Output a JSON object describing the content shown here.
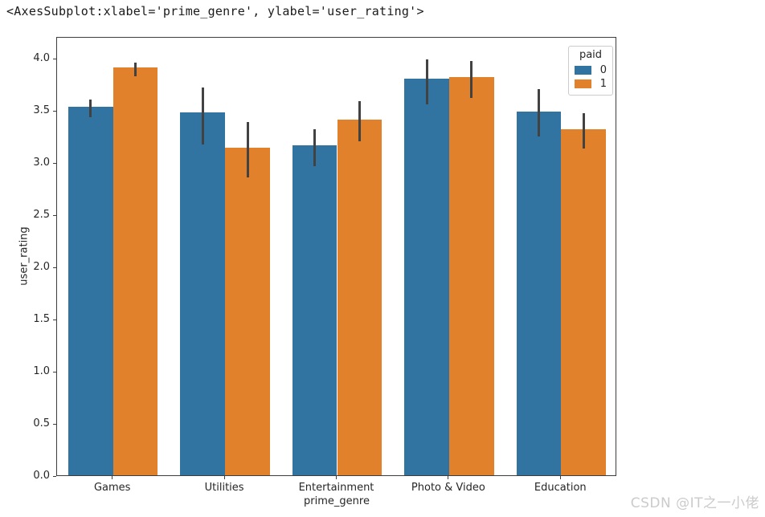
{
  "repl_output": "<AxesSubplot:xlabel='prime_genre', ylabel='user_rating'>",
  "watermark": "CSDN @IT之一小佬",
  "chart_data": {
    "type": "bar",
    "title": "",
    "xlabel": "prime_genre",
    "ylabel": "user_rating",
    "categories": [
      "Games",
      "Utilities",
      "Entertainment",
      "Photo & Video",
      "Education"
    ],
    "series": [
      {
        "name": "0",
        "color": "#3274a1",
        "values": [
          3.53,
          3.48,
          3.16,
          3.8,
          3.49
        ],
        "err_low": [
          3.45,
          3.19,
          2.98,
          3.57,
          3.26
        ],
        "err_high": [
          3.62,
          3.73,
          3.33,
          4.0,
          3.72
        ]
      },
      {
        "name": "1",
        "color": "#e1812c",
        "values": [
          3.91,
          3.14,
          3.41,
          3.82,
          3.32
        ],
        "err_low": [
          3.84,
          2.87,
          3.22,
          3.63,
          3.15
        ],
        "err_high": [
          3.97,
          3.4,
          3.6,
          3.99,
          3.49
        ]
      }
    ],
    "ylim": [
      0,
      4.21
    ],
    "yticks": [
      0.0,
      0.5,
      1.0,
      1.5,
      2.0,
      2.5,
      3.0,
      3.5,
      4.0
    ],
    "ytick_labels": [
      "0.0",
      "0.5",
      "1.0",
      "1.5",
      "2.0",
      "2.5",
      "3.0",
      "3.5",
      "4.0"
    ],
    "legend": {
      "title": "paid",
      "position": "upper right"
    },
    "grid": false,
    "group_total_width_ratio": 0.8,
    "error_bar_color": "#424242",
    "spine_color": "#3c3c3c"
  }
}
